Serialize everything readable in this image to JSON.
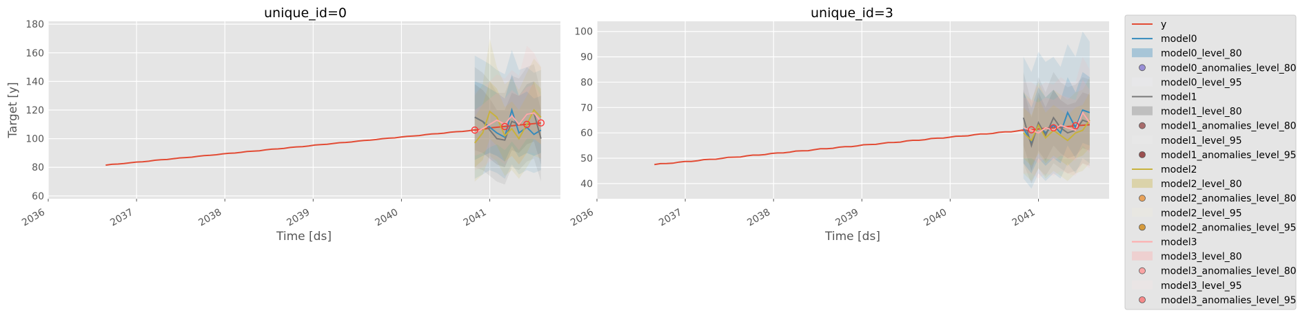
{
  "chart_data": {
    "type": "line",
    "xlabel": "Time [ds]",
    "ylabel": "Target [y]",
    "panels": [
      {
        "title": "unique_id=0",
        "xticks": [
          "2036",
          "2037",
          "2038",
          "2039",
          "2040",
          "2041"
        ],
        "yticks": [
          60,
          80,
          100,
          120,
          140,
          160,
          180
        ],
        "ylim": [
          58,
          182
        ],
        "xlim": [
          2036.0,
          2041.8
        ],
        "y_history": {
          "x_start": 2036.65,
          "x_end": 2040.83,
          "y_start": 81.5,
          "y_end": 106
        },
        "forecast_x": [
          2040.83,
          2040.92,
          2041.0,
          2041.08,
          2041.17,
          2041.25,
          2041.33,
          2041.42,
          2041.5,
          2041.58
        ],
        "y_forecast": [
          106,
          106.5,
          107.5,
          108,
          108.5,
          109,
          109.5,
          110,
          110.5,
          111
        ],
        "models": [
          {
            "name": "model0",
            "values": [
              115,
              112,
              108,
              104,
              101,
              120,
              104,
              108,
              103,
              106
            ],
            "lo80": [
              85,
              88,
              90,
              88,
              84,
              95,
              87,
              90,
              88,
              90
            ],
            "hi80": [
              140,
              138,
              135,
              132,
              128,
              145,
              130,
              133,
              128,
              130
            ],
            "lo95": [
              72,
              75,
              78,
              76,
              72,
              82,
              75,
              78,
              76,
              78
            ],
            "hi95": [
              158,
              155,
              152,
              148,
              145,
              162,
              148,
              150,
              146,
              148
            ]
          },
          {
            "name": "model1",
            "values": [
              115,
              112,
              106,
              100,
              99,
              112,
              110,
              117,
              118,
              100
            ],
            "lo80": [
              92,
              90,
              86,
              82,
              80,
              92,
              90,
              96,
              98,
              82
            ],
            "hi80": [
              138,
              134,
              128,
              120,
              120,
              132,
              130,
              138,
              140,
              120
            ],
            "lo95": [
              80,
              78,
              74,
              70,
              68,
              80,
              78,
              84,
              86,
              70
            ],
            "hi95": [
              150,
              146,
              140,
              132,
              132,
              144,
              142,
              150,
              152,
              132
            ]
          },
          {
            "name": "model2",
            "values": [
              97,
              104,
              119,
              115,
              102,
              107,
              100,
              110,
              120,
              115
            ],
            "lo80": [
              80,
              85,
              100,
              95,
              84,
              88,
              82,
              90,
              100,
              96
            ],
            "hi80": [
              115,
              124,
              140,
              135,
              122,
              126,
              120,
              130,
              140,
              135
            ],
            "lo95": [
              70,
              75,
              88,
              84,
              74,
              78,
              72,
              80,
              88,
              86
            ],
            "hi95": [
              130,
              138,
              170,
              150,
              138,
              142,
              134,
              146,
              156,
              150
            ]
          },
          {
            "name": "model3",
            "values": [
              104,
              107,
              110,
              113,
              110,
              116,
              110,
              117,
              118,
              112
            ],
            "lo80": [
              88,
              90,
              94,
              96,
              92,
              98,
              92,
              100,
              100,
              96
            ],
            "hi80": [
              120,
              124,
              128,
              132,
              128,
              134,
              130,
              136,
              138,
              130
            ],
            "lo95": [
              78,
              80,
              84,
              86,
              82,
              88,
              82,
              90,
              90,
              86
            ],
            "hi95": [
              132,
              136,
              140,
              145,
              142,
              148,
              144,
              165,
              160,
              150
            ]
          }
        ],
        "anomaly_points": [
          {
            "x": 2040.83,
            "y": 106
          },
          {
            "x": 2041.17,
            "y": 108.5
          },
          {
            "x": 2041.42,
            "y": 110
          },
          {
            "x": 2041.58,
            "y": 111
          }
        ]
      },
      {
        "title": "unique_id=3",
        "xticks": [
          "2036",
          "2037",
          "2038",
          "2039",
          "2040",
          "2041"
        ],
        "yticks": [
          40,
          50,
          60,
          70,
          80,
          90,
          100
        ],
        "ylim": [
          34,
          104
        ],
        "xlim": [
          2036.0,
          2041.8
        ],
        "y_history": {
          "x_start": 2036.65,
          "x_end": 2040.83,
          "y_start": 47.5,
          "y_end": 61
        },
        "forecast_x": [
          2040.83,
          2040.92,
          2041.0,
          2041.08,
          2041.17,
          2041.25,
          2041.33,
          2041.42,
          2041.5,
          2041.58
        ],
        "y_forecast": [
          61,
          61.2,
          61.5,
          61.8,
          62,
          62.2,
          62.5,
          62.8,
          63,
          63.2
        ],
        "models": [
          {
            "name": "model0",
            "values": [
              62,
              56,
              63,
              60,
              63,
              60,
              68,
              62,
              69,
              68
            ],
            "lo80": [
              48,
              44,
              50,
              47,
              50,
              48,
              55,
              50,
              56,
              55
            ],
            "hi80": [
              76,
              70,
              78,
              74,
              77,
              73,
              82,
              76,
              84,
              82
            ],
            "lo95": [
              42,
              38,
              44,
              41,
              44,
              42,
              48,
              44,
              50,
              48
            ],
            "hi95": [
              90,
              84,
              92,
              88,
              90,
              86,
              95,
              90,
              100,
              96
            ]
          },
          {
            "name": "model1",
            "values": [
              66,
              55,
              64,
              59,
              66,
              62,
              60,
              61,
              65,
              64
            ],
            "lo80": [
              55,
              45,
              53,
              49,
              55,
              52,
              50,
              51,
              54,
              53
            ],
            "hi80": [
              77,
              66,
              76,
              70,
              77,
              73,
              71,
              72,
              76,
              75
            ],
            "lo95": [
              48,
              40,
              46,
              43,
              48,
              46,
              44,
              45,
              48,
              47
            ],
            "hi95": [
              84,
              72,
              82,
              76,
              84,
              80,
              78,
              79,
              82,
              81
            ]
          },
          {
            "name": "model2",
            "values": [
              60,
              57,
              63,
              58,
              61,
              59,
              57,
              60,
              61,
              65
            ],
            "lo80": [
              50,
              47,
              52,
              48,
              51,
              49,
              47,
              50,
              51,
              54
            ],
            "hi80": [
              70,
              67,
              74,
              68,
              71,
              69,
              67,
              70,
              71,
              76
            ],
            "lo95": [
              44,
              41,
              46,
              42,
              45,
              43,
              41,
              44,
              45,
              48
            ],
            "hi95": [
              76,
              73,
              80,
              74,
              77,
              75,
              73,
              76,
              77,
              82
            ]
          },
          {
            "name": "model3",
            "values": [
              62,
              61,
              60,
              62,
              61,
              63,
              62,
              61,
              68,
              64
            ],
            "lo80": [
              50,
              50,
              48,
              50,
              49,
              51,
              50,
              49,
              55,
              52
            ],
            "hi80": [
              74,
              73,
              72,
              74,
              73,
              75,
              74,
              73,
              81,
              77
            ],
            "lo95": [
              44,
              44,
              42,
              44,
              43,
              45,
              44,
              43,
              48,
              46
            ],
            "hi95": [
              80,
              80,
              78,
              80,
              79,
              82,
              80,
              80,
              90,
              85
            ]
          }
        ],
        "anomaly_points": [
          {
            "x": 2040.92,
            "y": 61.2
          },
          {
            "x": 2041.17,
            "y": 62
          },
          {
            "x": 2041.42,
            "y": 62.8
          }
        ]
      }
    ],
    "legend": {
      "placement": "right",
      "entries": [
        {
          "label": "y",
          "kind": "line",
          "color": "#e24a33"
        },
        {
          "label": "model0",
          "kind": "line",
          "color": "#348abd"
        },
        {
          "label": "model0_level_80",
          "kind": "patch",
          "color": "#348abd"
        },
        {
          "label": "model0_anomalies_level_80",
          "kind": "marker",
          "color": "#988ed5"
        },
        {
          "label": "model0_level_95",
          "kind": "patch",
          "color": "#eaeaf2"
        },
        {
          "label": "model1",
          "kind": "line",
          "color": "#777777"
        },
        {
          "label": "model1_level_80",
          "kind": "patch",
          "color": "#777777"
        },
        {
          "label": "model1_anomalies_level_80",
          "kind": "marker",
          "color": "#a86c6c"
        },
        {
          "label": "model1_level_95",
          "kind": "patch",
          "color": "#eaeaea"
        },
        {
          "label": "model1_anomalies_level_95",
          "kind": "marker",
          "color": "#9b4f4f"
        },
        {
          "label": "model2",
          "kind": "line",
          "color": "#c8b23c"
        },
        {
          "label": "model2_level_80",
          "kind": "patch",
          "color": "#c8b23c"
        },
        {
          "label": "model2_anomalies_level_80",
          "kind": "marker",
          "color": "#e8a25a"
        },
        {
          "label": "model2_level_95",
          "kind": "patch",
          "color": "#eeeadc"
        },
        {
          "label": "model2_anomalies_level_95",
          "kind": "marker",
          "color": "#d59a3c"
        },
        {
          "label": "model3",
          "kind": "line",
          "color": "#ffaaaa"
        },
        {
          "label": "model3_level_80",
          "kind": "patch",
          "color": "#ffaaaa"
        },
        {
          "label": "model3_anomalies_level_80",
          "kind": "marker",
          "color": "#f9a4a4"
        },
        {
          "label": "model3_level_95",
          "kind": "patch",
          "color": "#f3e6e6"
        },
        {
          "label": "model3_anomalies_level_95",
          "kind": "marker",
          "color": "#f58a8a"
        }
      ]
    },
    "colors": {
      "axes_bg": "#e5e5e5",
      "grid": "#ffffff",
      "y": "#e24a33",
      "model0": "#348abd",
      "model1": "#777777",
      "model2": "#c8b23c",
      "model3": "#ffaaaa",
      "anomaly_marker": "#ff3333"
    },
    "grid": true
  }
}
